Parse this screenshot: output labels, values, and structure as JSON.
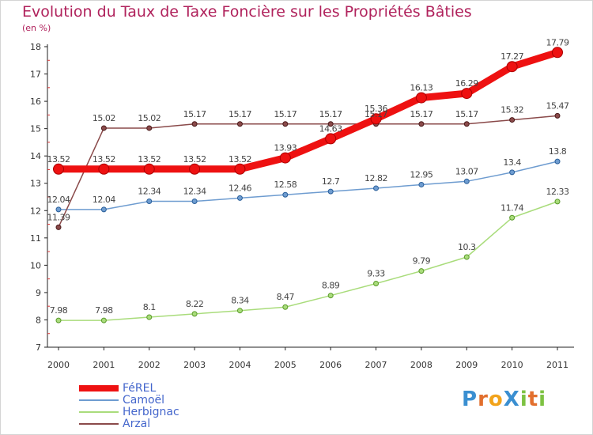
{
  "header": {
    "title": "Evolution du Taux de Taxe Foncière sur les Propriétés Bâties",
    "subtitle": "(en %)"
  },
  "logo": {
    "letters": [
      {
        "char": "P",
        "color": "#3a8fd1"
      },
      {
        "char": "r",
        "color": "#e26f2e"
      },
      {
        "char": "o",
        "color": "#f2a31b"
      },
      {
        "char": "X",
        "color": "#3a8fd1"
      },
      {
        "char": "i",
        "color": "#7dc242"
      },
      {
        "char": "t",
        "color": "#e26f2e"
      },
      {
        "char": "i",
        "color": "#7dc242"
      }
    ]
  },
  "chart_data": {
    "type": "line",
    "title": "Evolution du Taux de Taxe Foncière sur les Propriétés Bâties",
    "ylabel": "(en %)",
    "x": [
      2000,
      2001,
      2002,
      2003,
      2004,
      2005,
      2006,
      2007,
      2008,
      2009,
      2010,
      2011
    ],
    "ylim": [
      7,
      18
    ],
    "yticks": [
      7,
      8,
      9,
      10,
      11,
      12,
      13,
      14,
      15,
      16,
      17,
      18
    ],
    "grid": false,
    "legend_position": "bottom-left",
    "series": [
      {
        "name": "FéREL",
        "color": "#ee1111",
        "values": [
          13.52,
          13.52,
          13.52,
          13.52,
          13.52,
          13.93,
          14.63,
          15.36,
          16.13,
          16.29,
          17.27,
          17.79
        ],
        "labels": [
          "13.52",
          "13.52",
          "13.52",
          "13.52",
          "13.52",
          "13.93",
          "14.63",
          "15.36",
          "16.13",
          "16.29",
          "17.27",
          "17.79"
        ]
      },
      {
        "name": "Camoël",
        "color": "#6e9cd0",
        "values": [
          12.04,
          12.04,
          12.34,
          12.34,
          12.46,
          12.58,
          12.7,
          12.82,
          12.95,
          13.07,
          13.4,
          13.8
        ],
        "labels": [
          "12.04",
          "12.04",
          "12.34",
          "12.34",
          "12.46",
          "12.58",
          "12.7",
          "12.82",
          "12.95",
          "13.07",
          "13.4",
          "13.8"
        ]
      },
      {
        "name": "Herbignac",
        "color": "#a9dc7b",
        "values": [
          7.98,
          7.98,
          8.1,
          8.22,
          8.34,
          8.47,
          8.89,
          9.33,
          9.79,
          10.3,
          11.74,
          12.33
        ],
        "labels": [
          "7.98",
          "7.98",
          "8.1",
          "8.22",
          "8.34",
          "8.47",
          "8.89",
          "9.33",
          "9.79",
          "10.3",
          "11.74",
          "12.33"
        ]
      },
      {
        "name": "Arzal",
        "color": "#8a4a4a",
        "values": [
          11.39,
          15.02,
          15.02,
          15.17,
          15.17,
          15.17,
          15.17,
          15.17,
          15.17,
          15.17,
          15.32,
          15.47
        ],
        "labels": [
          "11.39",
          "15.02",
          "15.02",
          "15.17",
          "15.17",
          "15.17",
          "15.17",
          "15.17",
          "15.17",
          "15.17",
          "15.32",
          "15.47"
        ]
      }
    ]
  }
}
